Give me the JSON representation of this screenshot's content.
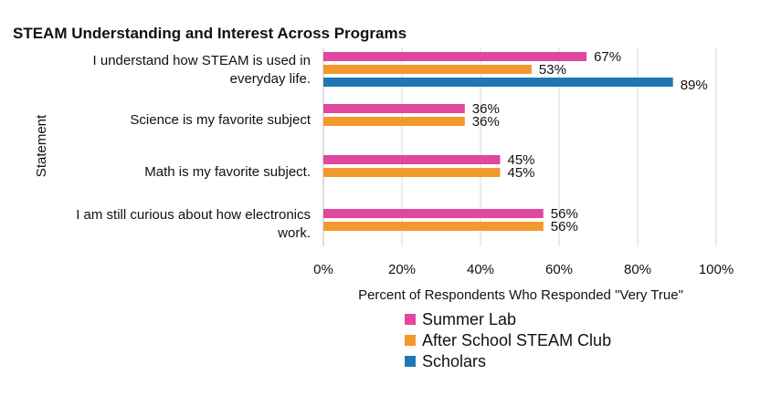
{
  "chart_data": {
    "type": "bar",
    "orientation": "horizontal",
    "title": "STEAM Understanding and Interest Across Programs",
    "xlabel": "Percent of  Respondents Who Responded \"Very True\"",
    "ylabel": "Statement",
    "xlim": [
      0,
      100
    ],
    "x_ticks": [
      "0%",
      "20%",
      "40%",
      "60%",
      "80%",
      "100%"
    ],
    "grid": "vertical",
    "legend_position": "bottom",
    "categories": [
      "I understand how STEAM is used in everyday life.",
      "Science is my favorite subject",
      "Math is my favorite subject.",
      "I am still curious about how electronics work."
    ],
    "series": [
      {
        "name": "Summer Lab",
        "color": "#E0479E",
        "values": [
          67,
          36,
          45,
          56
        ]
      },
      {
        "name": "After School STEAM Club",
        "color": "#F2992E",
        "values": [
          53,
          36,
          45,
          56
        ]
      },
      {
        "name": "Scholars",
        "color": "#1F78B4",
        "values": [
          89,
          null,
          null,
          null
        ]
      }
    ]
  }
}
